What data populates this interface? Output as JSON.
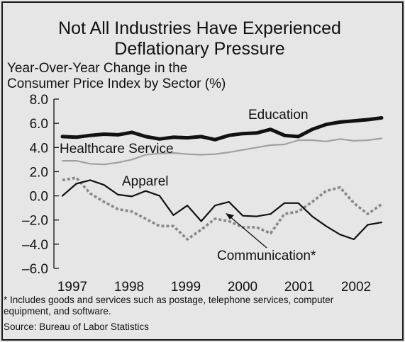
{
  "chart_data": {
    "type": "line",
    "title": "Not All Industries Have Experienced",
    "title_line2": "Deflationary Pressure",
    "ylabel": "Year-Over-Year Change in the",
    "ylabel_line2": "Consumer Price Index by Sector (%)",
    "ylim": [
      -6.0,
      8.0
    ],
    "y_ticks": [
      "8.0",
      "6.0",
      "4.0",
      "2.0",
      "0.0",
      "–2.0",
      "–4.0",
      "–6.0"
    ],
    "x_ticks": [
      "1997",
      "1998",
      "1999",
      "2000",
      "2001",
      "2002"
    ],
    "grid": false,
    "x": [
      1996.75,
      1997.0,
      1997.25,
      1997.5,
      1997.75,
      1998.0,
      1998.25,
      1998.5,
      1998.75,
      1999.0,
      1999.25,
      1999.5,
      1999.75,
      2000.0,
      2000.25,
      2000.5,
      2000.75,
      2001.0,
      2001.25,
      2001.5,
      2001.75,
      2002.0,
      2002.25,
      2002.5
    ],
    "series": [
      {
        "name": "Education",
        "color": "#111111",
        "style": "thick",
        "values": [
          4.9,
          4.85,
          5.0,
          5.1,
          5.05,
          5.25,
          4.9,
          4.7,
          4.85,
          4.8,
          4.9,
          4.65,
          5.0,
          5.15,
          5.2,
          5.5,
          5.0,
          4.9,
          5.5,
          5.9,
          6.1,
          6.2,
          6.3,
          6.45
        ]
      },
      {
        "name": "Healthcare Service",
        "color": "#a0a0a0",
        "style": "solid",
        "values": [
          2.9,
          2.9,
          2.65,
          2.6,
          2.75,
          3.0,
          3.4,
          3.5,
          3.55,
          3.45,
          3.4,
          3.45,
          3.6,
          3.8,
          4.0,
          4.2,
          4.25,
          4.6,
          4.6,
          4.5,
          4.7,
          4.55,
          4.6,
          4.75
        ]
      },
      {
        "name": "Apparel",
        "color": "#111111",
        "style": "solid",
        "values": [
          0.0,
          1.0,
          1.3,
          0.9,
          0.1,
          -0.05,
          0.4,
          0.0,
          -1.6,
          -0.8,
          -2.1,
          -0.8,
          -0.5,
          -1.65,
          -1.7,
          -1.5,
          -0.6,
          -0.6,
          -1.7,
          -2.5,
          -3.2,
          -3.6,
          -2.4,
          -2.2
        ]
      },
      {
        "name": "Communication*",
        "color": "#888888",
        "style": "dotted",
        "values": [
          1.3,
          1.5,
          0.2,
          -0.5,
          -1.1,
          -1.3,
          -1.9,
          -2.5,
          -2.5,
          -3.6,
          -2.8,
          -1.9,
          -2.1,
          -2.6,
          -2.6,
          -3.1,
          -1.5,
          -1.3,
          -0.5,
          0.4,
          0.7,
          -0.6,
          -1.5,
          -0.7
        ]
      }
    ],
    "annotations": [
      "Education",
      "Healthcare Service",
      "Apparel",
      "Communication*"
    ]
  },
  "footnote": {
    "line1": "* Includes goods and services such as postage, telephone services, computer",
    "line2": "equipment, and software.",
    "source": "Source: Bureau of Labor Statistics"
  }
}
